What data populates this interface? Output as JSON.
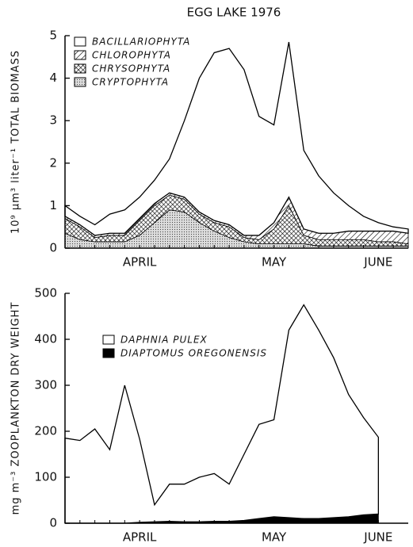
{
  "chart_data": [
    {
      "type": "stacked_area",
      "title": "EGG LAKE 1976",
      "y_label": "10⁹ μm³ liter⁻¹  TOTAL BIOMASS",
      "categories": [
        null,
        null,
        null,
        null,
        null,
        "APRIL",
        null,
        null,
        null,
        null,
        null,
        null,
        null,
        null,
        "MAY",
        null,
        null,
        null,
        null,
        null,
        null,
        "JUNE",
        null,
        null
      ],
      "series": [
        {
          "name": "BACILLARIOPHYTA",
          "color": "#ffffff",
          "pattern": "none",
          "values": [
            0.25,
            0.2,
            0.25,
            0.45,
            0.55,
            0.5,
            0.55,
            0.8,
            1.8,
            3.15,
            3.95,
            4.15,
            3.9,
            2.8,
            2.3,
            3.65,
            1.85,
            1.35,
            0.95,
            0.6,
            0.35,
            0.2,
            0.1,
            0.1
          ]
        },
        {
          "name": "CHLOROPHYTA",
          "color": "#000000",
          "pattern": "hatch",
          "values": [
            0.05,
            0.05,
            0.05,
            0.05,
            0.05,
            0.05,
            0.05,
            0.05,
            0.05,
            0.05,
            0.05,
            0.05,
            0.05,
            0.1,
            0.15,
            0.2,
            0.15,
            0.15,
            0.15,
            0.2,
            0.2,
            0.25,
            0.25,
            0.25
          ]
        },
        {
          "name": "CHRYSOPHYTA",
          "color": "#000000",
          "pattern": "crosshatch",
          "values": [
            0.35,
            0.3,
            0.1,
            0.15,
            0.15,
            0.35,
            0.4,
            0.35,
            0.3,
            0.2,
            0.2,
            0.25,
            0.1,
            0.1,
            0.35,
            0.9,
            0.2,
            0.15,
            0.15,
            0.15,
            0.15,
            0.1,
            0.1,
            0.05
          ]
        },
        {
          "name": "CRYPTOPHYTA",
          "color": "#000000",
          "pattern": "dots",
          "values": [
            0.35,
            0.2,
            0.15,
            0.15,
            0.15,
            0.3,
            0.6,
            0.9,
            0.85,
            0.6,
            0.4,
            0.25,
            0.15,
            0.1,
            0.1,
            0.1,
            0.1,
            0.05,
            0.05,
            0.05,
            0.05,
            0.05,
            0.05,
            0.05
          ]
        }
      ],
      "ylim": [
        0,
        5
      ],
      "yticks": [
        0,
        1,
        2,
        3,
        4,
        5
      ],
      "legend": "upper left"
    },
    {
      "type": "stacked_area",
      "y_label": "mg m⁻³   ZOOPLANKTON DRY WEIGHT",
      "categories": [
        null,
        null,
        null,
        null,
        null,
        "APRIL",
        null,
        null,
        null,
        null,
        null,
        null,
        null,
        null,
        "MAY",
        null,
        null,
        null,
        null,
        null,
        null,
        "JUNE"
      ],
      "series": [
        {
          "name": "DAPHNIA PULEX",
          "color": "#ffffff",
          "pattern": "none",
          "values": [
            185,
            180,
            205,
            160,
            300,
            181,
            37,
            81,
            82,
            97,
            104,
            81,
            144,
            205,
            211,
            408,
            465,
            410,
            348,
            266,
            212,
            167
          ]
        },
        {
          "name": "DIAPTOMUS OREGONENSIS",
          "color": "#000000",
          "pattern": "solid",
          "values": [
            0,
            0,
            0,
            0,
            0,
            2,
            3,
            4,
            3,
            3,
            4,
            4,
            6,
            10,
            14,
            12,
            10,
            10,
            12,
            14,
            18,
            20
          ]
        }
      ],
      "ylim": [
        0,
        500
      ],
      "yticks": [
        0,
        100,
        200,
        300,
        400,
        500
      ],
      "legend": "middle left"
    }
  ]
}
